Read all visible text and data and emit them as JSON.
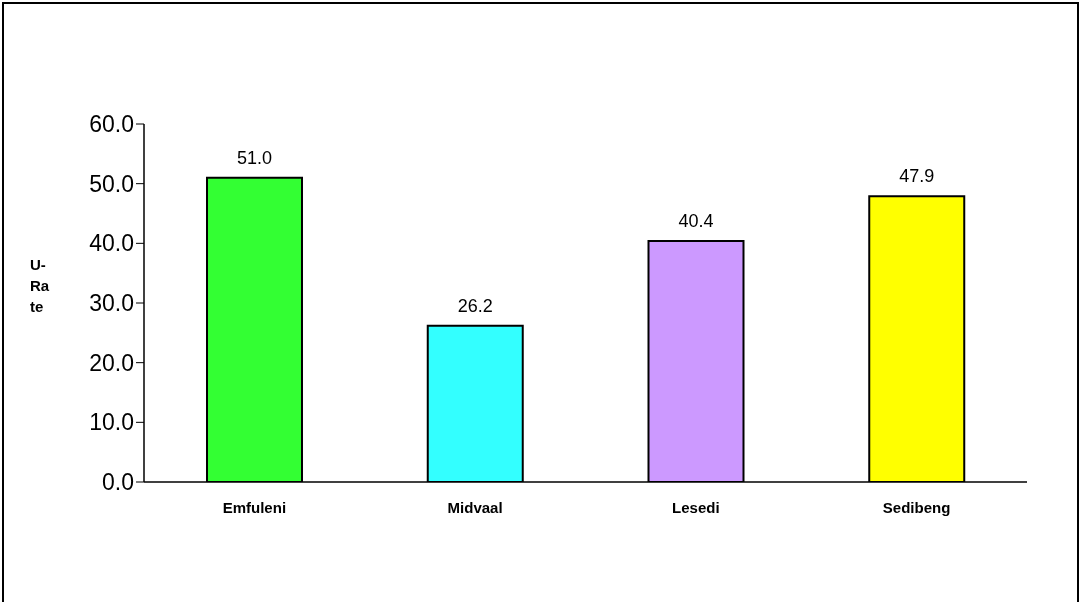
{
  "chart_data": {
    "type": "bar",
    "ylabel": "U-Rate",
    "categories": [
      "Emfuleni",
      "Midvaal",
      "Lesedi",
      "Sedibeng"
    ],
    "values": [
      51.0,
      26.2,
      40.4,
      47.9
    ],
    "colors": [
      "#33ff33",
      "#33ffff",
      "#cc99ff",
      "#ffff00"
    ],
    "value_labels": [
      "51.0",
      "26.2",
      "40.4",
      "47.9"
    ],
    "ylim": [
      0,
      60
    ],
    "yticks": [
      {
        "value": 0,
        "label": "0.0"
      },
      {
        "value": 10,
        "label": "10.0"
      },
      {
        "value": 20,
        "label": "20.0"
      },
      {
        "value": 30,
        "label": "30.0"
      },
      {
        "value": 40,
        "label": "40.0"
      },
      {
        "value": 50,
        "label": "50.0"
      },
      {
        "value": 60,
        "label": "60.0"
      }
    ],
    "grid": false,
    "legend": false
  }
}
